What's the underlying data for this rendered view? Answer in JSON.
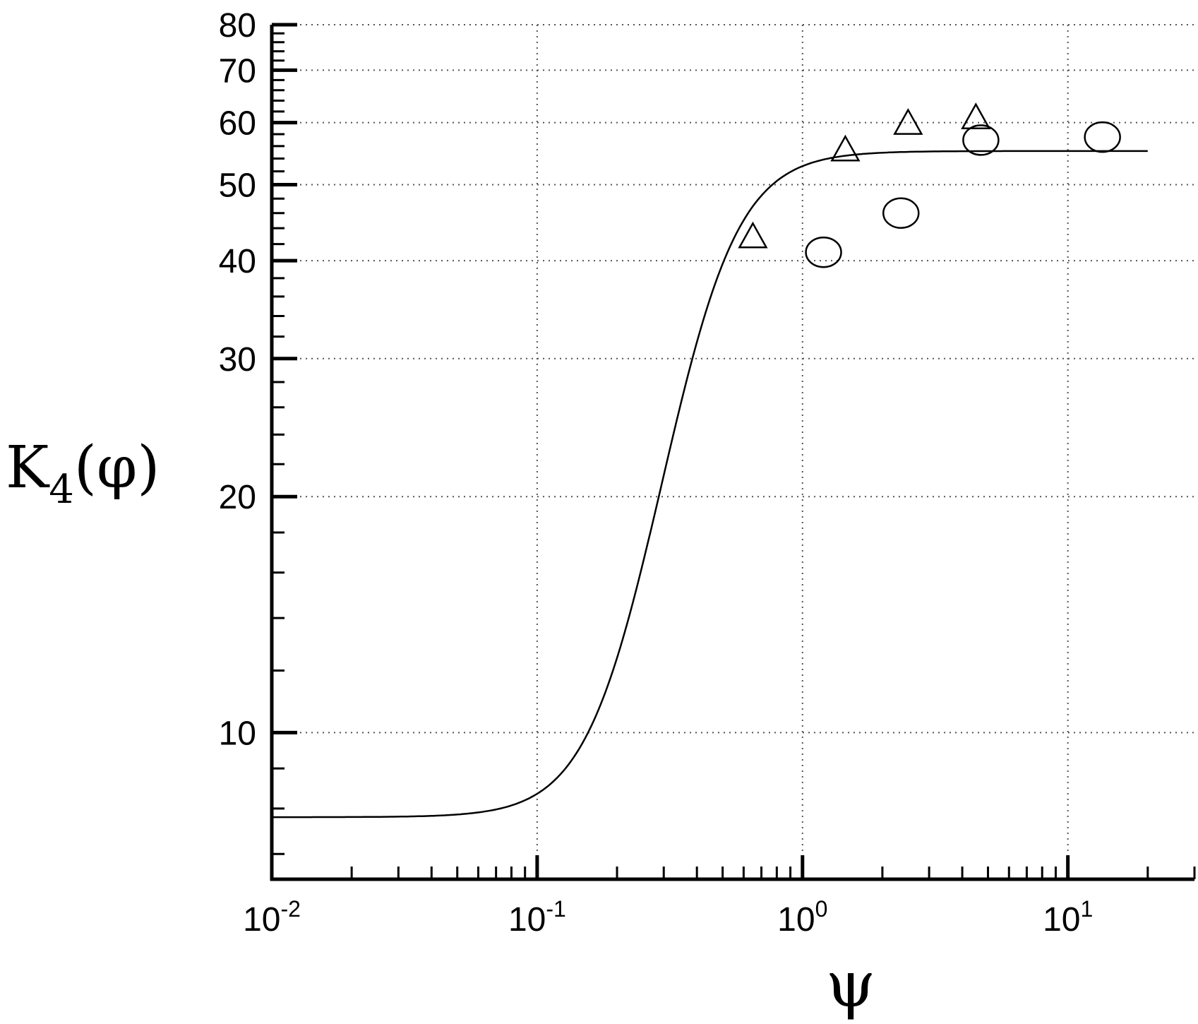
{
  "chart_data": {
    "type": "scatter",
    "title": "",
    "xlabel": "ψ",
    "ylabel": {
      "main": "K",
      "subscript": "4",
      "tail": "(φ)"
    },
    "x_scale": "log",
    "y_scale": "log",
    "xlim": [
      0.01,
      30
    ],
    "ylim": [
      6.5,
      80
    ],
    "grid": true,
    "legend": "none",
    "x_tick_labels": [
      {
        "value": 0.01,
        "base": "10",
        "exp": "-2"
      },
      {
        "value": 0.1,
        "base": "10",
        "exp": "-1"
      },
      {
        "value": 1,
        "base": "10",
        "exp": "0"
      },
      {
        "value": 10,
        "base": "10",
        "exp": "1"
      }
    ],
    "y_tick_labels": [
      {
        "value": 10,
        "label": "10"
      },
      {
        "value": 20,
        "label": "20"
      },
      {
        "value": 30,
        "label": "30"
      },
      {
        "value": 40,
        "label": "40"
      },
      {
        "value": 50,
        "label": "50"
      },
      {
        "value": 60,
        "label": "60"
      },
      {
        "value": 70,
        "label": "70"
      },
      {
        "value": 80,
        "label": "80"
      }
    ],
    "series": [
      {
        "type": "line",
        "model": {
          "low": 7.8,
          "high": 55.2,
          "center": 0.4,
          "steepness": 3.2
        },
        "x_range": [
          0.01,
          20
        ]
      },
      {
        "marker": "triangle",
        "points": [
          {
            "x": 0.65,
            "y": 43
          },
          {
            "x": 1.45,
            "y": 55.5
          },
          {
            "x": 2.5,
            "y": 60
          },
          {
            "x": 4.5,
            "y": 61
          }
        ]
      },
      {
        "marker": "circle",
        "points": [
          {
            "x": 1.2,
            "y": 41
          },
          {
            "x": 2.35,
            "y": 46
          },
          {
            "x": 4.7,
            "y": 57
          },
          {
            "x": 13.5,
            "y": 57.5
          }
        ]
      }
    ]
  }
}
